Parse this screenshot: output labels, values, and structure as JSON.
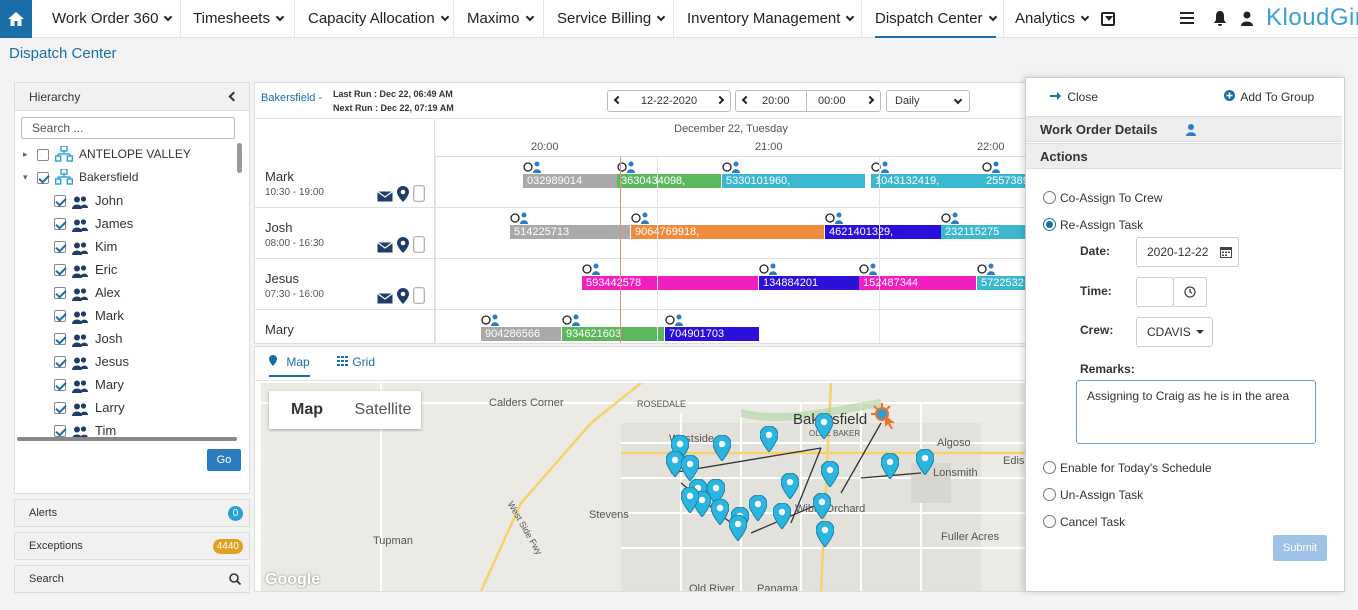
{
  "nav": {
    "brand": "KloudGin",
    "items": [
      "Work Order 360",
      "Timesheets",
      "Capacity Allocation",
      "Maximo",
      "Service Billing",
      "Inventory Management",
      "Dispatch Center",
      "Analytics"
    ],
    "active": "Dispatch Center"
  },
  "page_title": "Dispatch Center",
  "hierarchy": {
    "title": "Hierarchy",
    "search_placeholder": "Search ...",
    "nodes": [
      {
        "label": "ANTELOPE VALLEY",
        "checked": false,
        "type": "org"
      },
      {
        "label": "Bakersfield",
        "checked": true,
        "type": "org"
      }
    ],
    "crew": [
      "John",
      "James",
      "Kim",
      "Eric",
      "Alex",
      "Mark",
      "Josh",
      "Jesus",
      "Mary",
      "Larry",
      "Tim"
    ],
    "go_label": "Go"
  },
  "side_boxes": {
    "alerts": {
      "label": "Alerts",
      "count": "0",
      "color": "#2a9fd6"
    },
    "exceptions": {
      "label": "Exceptions",
      "count": "4440",
      "color": "#e0a020"
    },
    "search": {
      "label": "Search"
    }
  },
  "scheduler": {
    "location": "Bakersfield -",
    "last_run": "Last Run : Dec 22, 06:49 AM",
    "next_run": "Next Run : Dec 22, 07:19 AM",
    "date": "12-22-2020",
    "time_from": "20:00",
    "time_to": "00:00",
    "view": "Daily",
    "date_header": "December 22, Tuesday",
    "ticks": [
      "20:00",
      "21:00",
      "22:00"
    ],
    "rows": [
      {
        "name": "Mark",
        "hours": "10:30 - 19:00",
        "tasks": [
          {
            "id": "032989014",
            "color": "#a9a9a9"
          },
          {
            "id": "3630434098,",
            "color": "#5cb85c"
          },
          {
            "id": "5330101960,",
            "color": "#3bb7cf"
          },
          {
            "id": "1043132419,",
            "color": "#3bb7cf"
          },
          {
            "id": "2557389",
            "color": "#3bb7cf"
          }
        ]
      },
      {
        "name": "Josh",
        "hours": "08:00 - 16:30",
        "tasks": [
          {
            "id": "514225713",
            "color": "#a9a9a9"
          },
          {
            "id": "9064769918,",
            "color": "#f08a3c"
          },
          {
            "id": "4621401329,",
            "color": "#2a10d8"
          },
          {
            "id": "232115275",
            "color": "#3bb7cf"
          }
        ]
      },
      {
        "name": "Jesus",
        "hours": "07:30 - 16:00",
        "tasks": [
          {
            "id": "593442578",
            "color": "#f020c0"
          },
          {
            "id": "134884201",
            "color": "#2a10d8"
          },
          {
            "id": "152487344",
            "color": "#f020c0"
          },
          {
            "id": "5722532",
            "color": "#3bb7cf"
          }
        ]
      },
      {
        "name": "Mary",
        "hours": "",
        "tasks": [
          {
            "id": "904286566",
            "color": "#a9a9a9"
          },
          {
            "id": "934621603",
            "color": "#5cb85c"
          },
          {
            "id": "704901703",
            "color": "#2a10d8"
          }
        ]
      }
    ]
  },
  "map": {
    "tab_map": "Map",
    "tab_grid": "Grid",
    "type_map": "Map",
    "type_satellite": "Satellite",
    "labels": [
      "Calders Corner",
      "ROSEDALE",
      "Westside",
      "Bakersfield",
      "OLDE BAKER",
      "Algoso",
      "Lonsmith",
      "Edis",
      "Stevens",
      "Tupman",
      "Wible Orchard",
      "Fuller Acres",
      "Old River",
      "Panama",
      "West Side Fwy"
    ],
    "google": "Google"
  },
  "right_panel": {
    "close": "Close",
    "add_group": "Add To Group",
    "section1": "Work Order Details",
    "section2": "Actions",
    "options": [
      "Co-Assign To Crew",
      "Re-Assign Task",
      "Enable for Today's Schedule",
      "Un-Assign Task",
      "Cancel Task"
    ],
    "selected_option": "Re-Assign Task",
    "date_label": "Date:",
    "date_value": "2020-12-22",
    "time_label": "Time:",
    "crew_label": "Crew:",
    "crew_value": "CDAVIS",
    "remarks_label": "Remarks:",
    "remarks_value": "Assigning to Craig as he is in the area",
    "submit": "Submit"
  }
}
